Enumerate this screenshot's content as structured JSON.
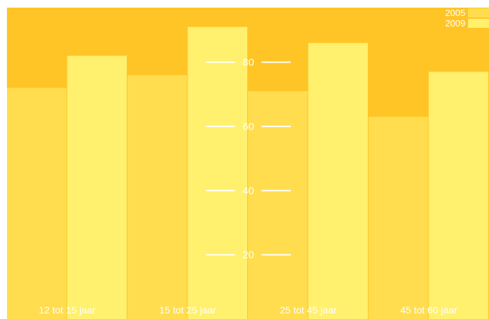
{
  "chart_data": {
    "type": "bar",
    "categories": [
      "12 tot 15 jaar",
      "15 tot 25 jaar",
      "25 tot 45 jaar",
      "45 tot 60 jaar"
    ],
    "series": [
      {
        "name": "2005",
        "values": [
          72,
          76,
          71,
          63
        ],
        "color": "#FFDD4F"
      },
      {
        "name": "2009",
        "values": [
          82,
          91,
          86,
          77
        ],
        "color": "#FFF06E"
      }
    ],
    "yticks": [
      20,
      40,
      60,
      80
    ],
    "ylim": [
      0,
      97
    ],
    "grid": true,
    "legend": "top-right",
    "colors": {
      "background": "#FFC526",
      "tick_line": "#ffffff",
      "text": "#ffffff"
    }
  }
}
